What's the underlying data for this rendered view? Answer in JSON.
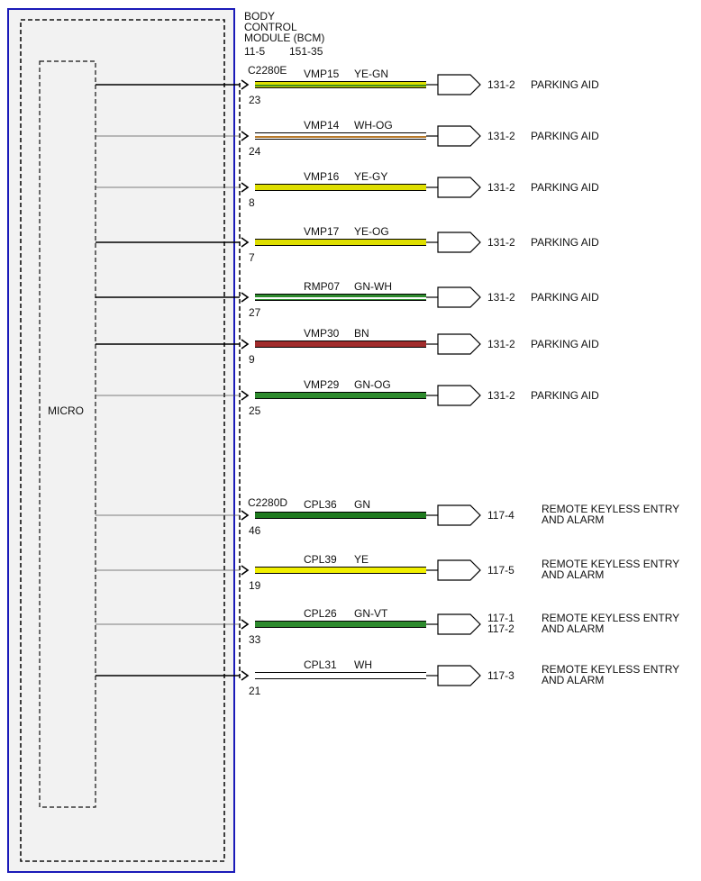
{
  "module": {
    "title": "BODY\nCONTROL\nMODULE (BCM)",
    "ref_a": "11-5",
    "ref_b": "151-35",
    "internal_label": "MICRO"
  },
  "connectors": [
    {
      "id": "C2280E"
    },
    {
      "id": "C2280D"
    }
  ],
  "colors": {
    "border": "#1a1ab8",
    "module_fill": "#f2f2f2",
    "YE-GN": [
      "#dede00",
      "#3f8f1f"
    ],
    "WH-OG": [
      "#ffffff",
      "#b87a2a"
    ],
    "YE-GY": [
      "#dede00",
      "#dede00"
    ],
    "YE-OG": [
      "#dede00",
      "#dede00"
    ],
    "GN-WH": [
      "#2d8a2d",
      "#ffffff"
    ],
    "BN": [
      "#a12c2c",
      "#a12c2c"
    ],
    "GN-OG": [
      "#2d8a2d",
      "#2d8a2d"
    ],
    "GN": [
      "#1f7a1f",
      "#1f7a1f"
    ],
    "YE": [
      "#f0ef00",
      "#f0ef00"
    ],
    "GN-VT": [
      "#2d8a2d",
      "#2d8a2d"
    ],
    "WH": [
      "#ffffff",
      "#ffffff"
    ]
  },
  "wires": [
    {
      "pin": "23",
      "circuit": "VMP15",
      "color": "YE-GN",
      "ref": "131-2",
      "dest": "PARKING AID",
      "connector": 0
    },
    {
      "pin": "24",
      "circuit": "VMP14",
      "color": "WH-OG",
      "ref": "131-2",
      "dest": "PARKING AID",
      "connector": 0
    },
    {
      "pin": "8",
      "circuit": "VMP16",
      "color": "YE-GY",
      "ref": "131-2",
      "dest": "PARKING AID",
      "connector": 0
    },
    {
      "pin": "7",
      "circuit": "VMP17",
      "color": "YE-OG",
      "ref": "131-2",
      "dest": "PARKING AID",
      "connector": 0
    },
    {
      "pin": "27",
      "circuit": "RMP07",
      "color": "GN-WH",
      "ref": "131-2",
      "dest": "PARKING AID",
      "connector": 0
    },
    {
      "pin": "9",
      "circuit": "VMP30",
      "color": "BN",
      "ref": "131-2",
      "dest": "PARKING AID",
      "connector": 0
    },
    {
      "pin": "25",
      "circuit": "VMP29",
      "color": "GN-OG",
      "ref": "131-2",
      "dest": "PARKING AID",
      "connector": 0
    },
    {
      "pin": "46",
      "circuit": "CPL36",
      "color": "GN",
      "ref": "117-4",
      "dest": "REMOTE KEYLESS ENTRY\nAND ALARM",
      "connector": 1
    },
    {
      "pin": "19",
      "circuit": "CPL39",
      "color": "YE",
      "ref": "117-5",
      "dest": "REMOTE KEYLESS ENTRY\nAND ALARM",
      "connector": 1
    },
    {
      "pin": "33",
      "circuit": "CPL26",
      "color": "GN-VT",
      "ref": "117-1\n117-2",
      "dest": "REMOTE KEYLESS ENTRY\nAND ALARM",
      "connector": 1
    },
    {
      "pin": "21",
      "circuit": "CPL31",
      "color": "WH",
      "ref": "117-3",
      "dest": "REMOTE KEYLESS ENTRY\nAND ALARM",
      "connector": 1
    }
  ]
}
